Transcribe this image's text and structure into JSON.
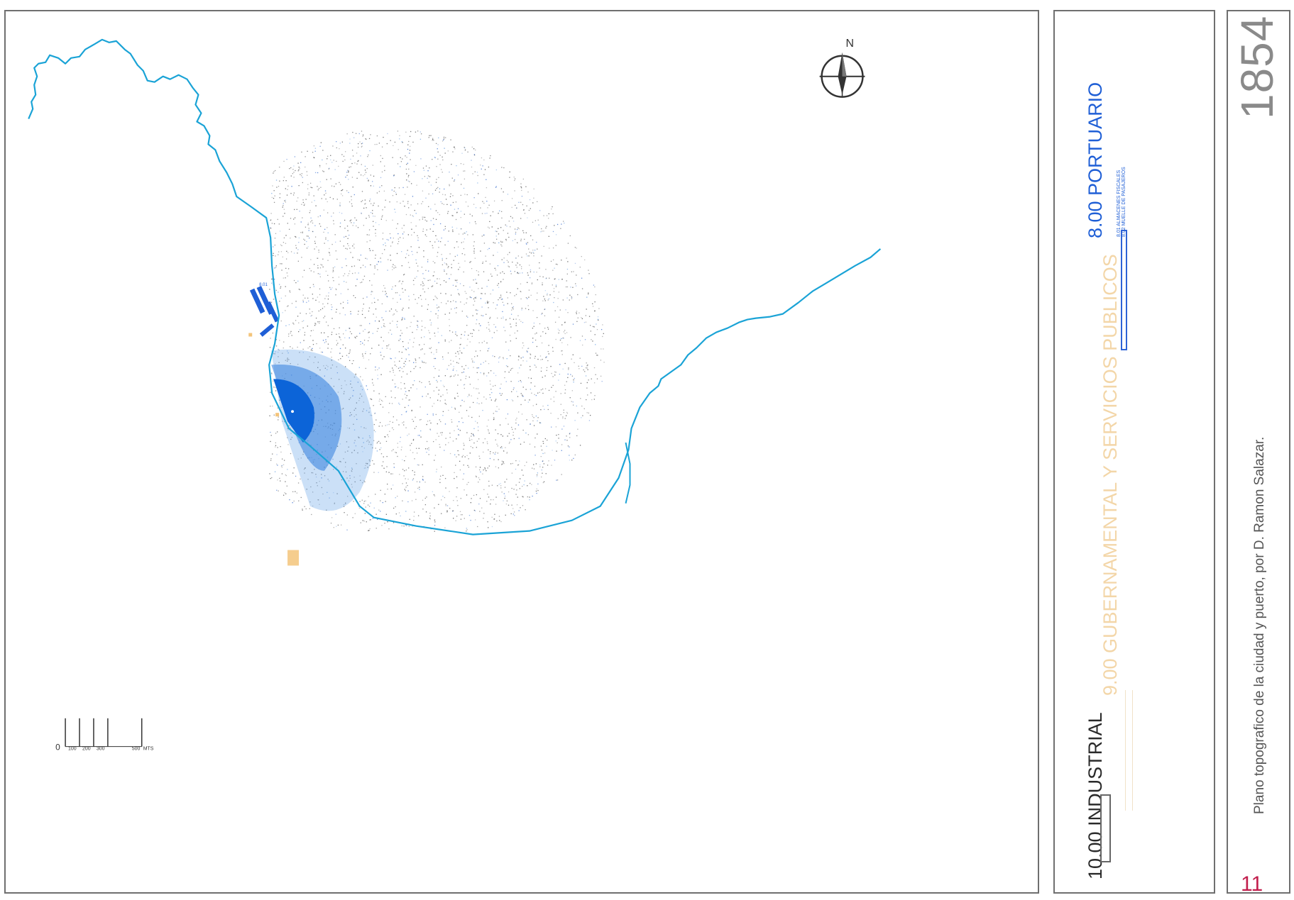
{
  "year": "1854",
  "caption": "Plano topografico de la ciudad y puerto, por D. Ramon Salazar.",
  "plate_number": "11",
  "compass": {
    "north_label": "N",
    "icon": "compass-rose-icon"
  },
  "scale_bar": {
    "labels": [
      "0",
      "100",
      "200",
      "300",
      "500",
      "MTS"
    ]
  },
  "legend": {
    "industrial": {
      "label": "10.00 INDUSTRIAL"
    },
    "gubernamental": {
      "label": "9.00 GUBERNAMENTAL Y SERVICIOS PUBLICOS"
    },
    "portuario": {
      "label": "8.00 PORTUARIO",
      "sub_items": [
        "8.01 ALMACENES FISCALES",
        "8.02 MUELLE DE PASAJEROS"
      ]
    }
  },
  "map": {
    "pier_label": "8.01"
  },
  "colors": {
    "coastline": "#1aa3d6",
    "port": "#1f5fd6",
    "port_dark": "#0c64d8",
    "gov": "#f3c47a",
    "plate_number": "#c21f4d",
    "frame": "#6f6f6f"
  }
}
